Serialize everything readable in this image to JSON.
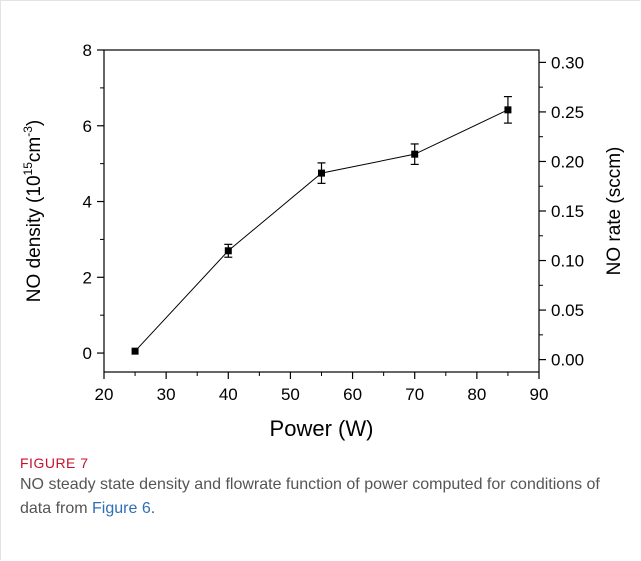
{
  "chart_data": {
    "type": "line",
    "xlabel": "Power (W)",
    "ylabel_left": {
      "base": "NO density (10",
      "sup1": "15",
      "mid": "cm",
      "sup2": "-3",
      "end": ")"
    },
    "ylabel_right": "NO rate (sccm)",
    "xlim": [
      20,
      90
    ],
    "ylim_left": [
      -0.5,
      8
    ],
    "ylim_right": [
      -0.0125,
      0.3125
    ],
    "x_ticks": [
      20,
      30,
      40,
      50,
      60,
      70,
      80,
      90
    ],
    "y_left_ticks": [
      0,
      2,
      4,
      6,
      8
    ],
    "y_right_ticks": [
      "0.00",
      "0.05",
      "0.10",
      "0.15",
      "0.20",
      "0.25",
      "0.30"
    ],
    "y_right_tick_values": [
      0,
      0.05,
      0.1,
      0.15,
      0.2,
      0.25,
      0.3
    ],
    "series": [
      {
        "x": [
          25,
          40,
          55,
          70,
          85
        ],
        "y": [
          0.05,
          2.7,
          4.75,
          5.25,
          6.42
        ],
        "yerr": [
          0,
          0.17,
          0.27,
          0.27,
          0.35
        ]
      }
    ],
    "grid": false
  },
  "caption": {
    "label": "FIGURE 7",
    "text_before": "NO steady state density and flowrate function of power computed for conditions of data from ",
    "link": "Figure 6",
    "text_after": "."
  }
}
